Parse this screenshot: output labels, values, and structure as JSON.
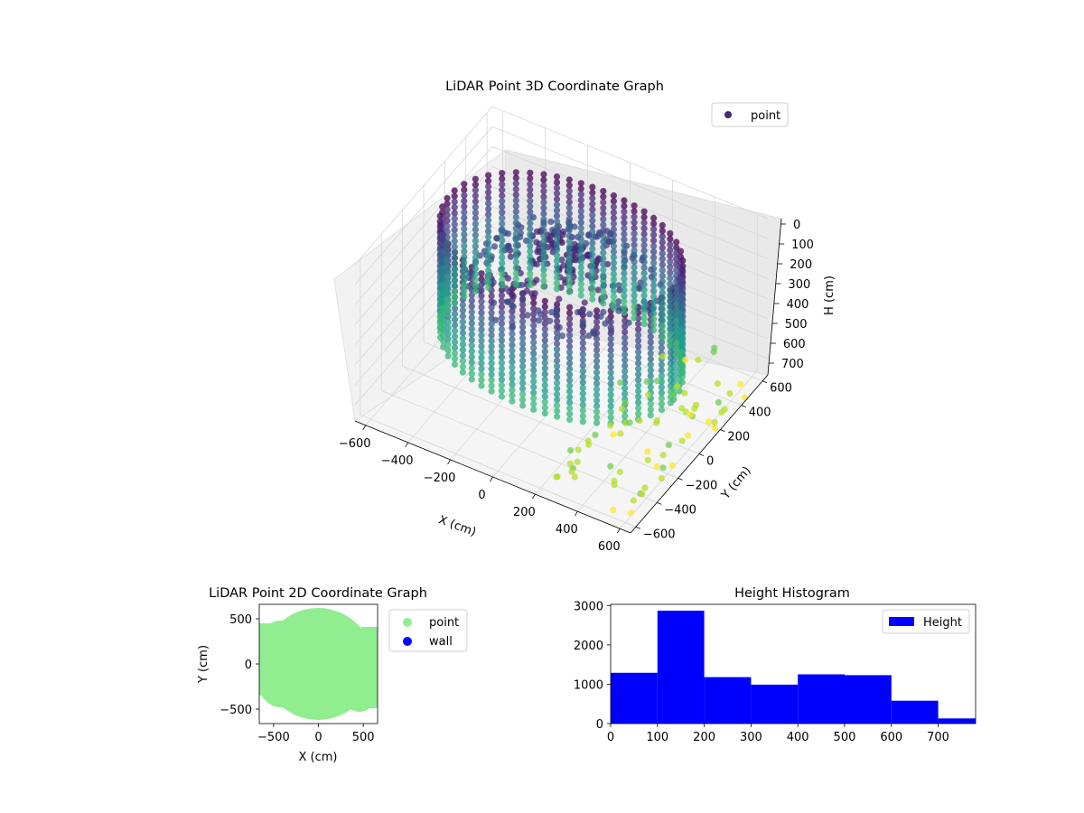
{
  "colors": {
    "viridis": [
      "#440154",
      "#482878",
      "#3e4989",
      "#31688e",
      "#26828e",
      "#1f9e89",
      "#35b779",
      "#6ece58",
      "#b5de2b",
      "#fde725"
    ],
    "point_2d": "#90ee90",
    "wall_2d": "#0000ff",
    "histogram": "#0000ff"
  },
  "chart_data": [
    {
      "type": "scatter",
      "title": "LiDAR Point 3D Coordinate Graph",
      "xlabel": "X (cm)",
      "ylabel": "Y (cm)",
      "zlabel": "H (cm)",
      "x_ticks": [
        "−600",
        "−400",
        "−200",
        "0",
        "200",
        "400",
        "600"
      ],
      "y_ticks": [
        "−600",
        "−400",
        "−200",
        "0",
        "200",
        "400",
        "600"
      ],
      "z_ticks": [
        "0",
        "100",
        "200",
        "300",
        "400",
        "500",
        "600",
        "700"
      ],
      "xlim": [
        -650,
        650
      ],
      "ylim": [
        -650,
        650
      ],
      "zlim": [
        0,
        780
      ],
      "z_inverted": true,
      "legend": [
        "point"
      ],
      "legend_position": "top-right",
      "colormap": "viridis",
      "structure": "rings of points around the origin at radii ~400-600 cm, heights 0-780 cm; a cluster of outlying points beyond x≈300, y≈-600..500 at heights ~700-780"
    },
    {
      "type": "scatter",
      "title": "LiDAR Point 2D Coordinate Graph",
      "xlabel": "X (cm)",
      "ylabel": "Y (cm)",
      "x_ticks": [
        "−500",
        "0",
        "500"
      ],
      "y_ticks": [
        "500",
        "0",
        "−500"
      ],
      "xlim": [
        -660,
        660
      ],
      "ylim": [
        -660,
        660
      ],
      "series": [
        {
          "name": "point",
          "color": "#90ee90"
        },
        {
          "name": "wall",
          "color": "#0000ff"
        }
      ],
      "legend_position": "outside-right"
    },
    {
      "type": "bar",
      "title": "Height Histogram",
      "bins": [
        [
          0,
          100
        ],
        [
          100,
          200
        ],
        [
          200,
          300
        ],
        [
          300,
          400
        ],
        [
          400,
          500
        ],
        [
          500,
          600
        ],
        [
          600,
          700
        ],
        [
          700,
          780
        ]
      ],
      "values": [
        1290,
        2870,
        1180,
        990,
        1250,
        1230,
        580,
        130
      ],
      "x_ticks": [
        "0",
        "100",
        "200",
        "300",
        "400",
        "500",
        "600",
        "700"
      ],
      "y_ticks": [
        "0",
        "1000",
        "2000",
        "3000"
      ],
      "xlim": [
        0,
        780
      ],
      "ylim": [
        0,
        3030
      ],
      "series": [
        {
          "name": "Height",
          "color": "#0000ff"
        }
      ],
      "legend_position": "top-right"
    }
  ]
}
